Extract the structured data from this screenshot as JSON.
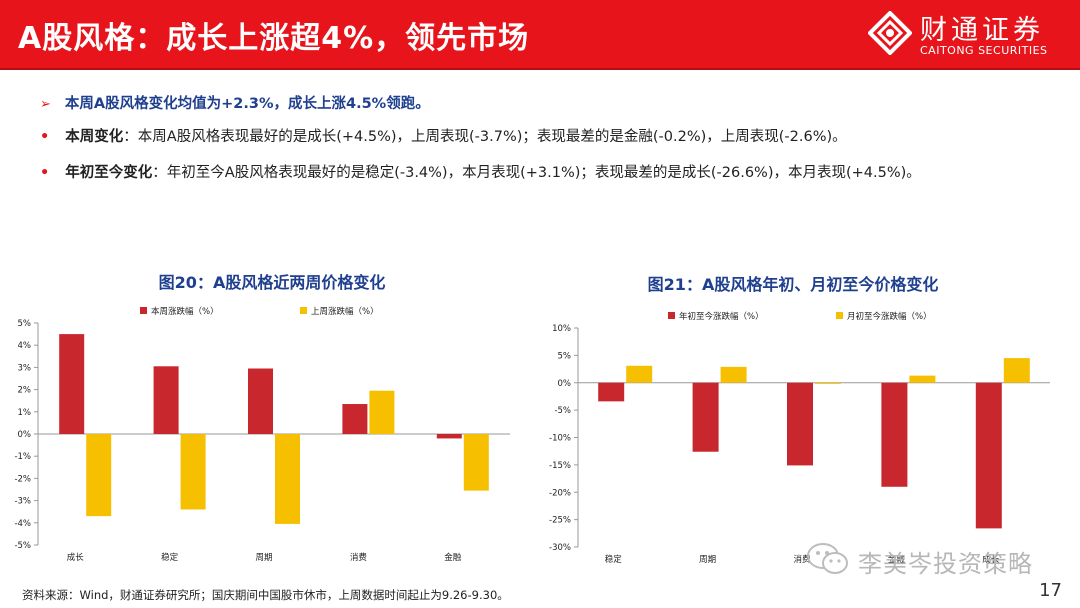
{
  "header": {
    "title": "A股风格：成长上涨超4%，领先市场",
    "logo_cn": "财通证券",
    "logo_en": "CAITONG SECURITIES",
    "brand_color": "#e8141c"
  },
  "bullets": {
    "summary": "本周A股风格变化均值为+2.3%，成长上涨4.5%领跑。",
    "week_lead": "本周变化",
    "week_text": "：本周A股风格表现最好的是成长(+4.5%)，上周表现(-3.7%)；表现最差的是金融(-0.2%)，上周表现(-2.6%)。",
    "ytd_lead": "年初至今变化",
    "ytd_text": "：年初至今A股风格表现最好的是稳定(-3.4%)，本月表现(+3.1%)；表现最差的是成长(-26.6%)，本月表现(+4.5%)。"
  },
  "chart_data": [
    {
      "type": "bar",
      "title": "图20：A股风格近两周价格变化",
      "categories": [
        "成长",
        "稳定",
        "周期",
        "消费",
        "金融"
      ],
      "series": [
        {
          "name": "本周涨跌幅（%）",
          "values": [
            4.5,
            3.05,
            2.95,
            1.35,
            -0.2
          ],
          "color": "#c8272d"
        },
        {
          "name": "上周涨跌幅（%）",
          "values": [
            -3.7,
            -3.4,
            -4.05,
            1.95,
            -2.55
          ],
          "color": "#f6c000"
        }
      ],
      "ylim": [
        -5,
        5
      ],
      "yticks": [
        "5%",
        "4%",
        "3%",
        "2%",
        "1%",
        "0%",
        "-1%",
        "-2%",
        "-3%",
        "-4%",
        "-5%"
      ],
      "legend": "top",
      "grid": false
    },
    {
      "type": "bar",
      "title": "图21：A股风格年初、月初至今价格变化",
      "categories": [
        "稳定",
        "周期",
        "消费",
        "金融",
        "成长"
      ],
      "series": [
        {
          "name": "年初至今涨跌幅（%）",
          "values": [
            -3.4,
            -12.6,
            -15.1,
            -19.0,
            -26.6
          ],
          "color": "#c8272d"
        },
        {
          "name": "月初至今涨跌幅（%）",
          "values": [
            3.1,
            2.9,
            -0.2,
            1.3,
            4.5
          ],
          "color": "#f6c000"
        }
      ],
      "ylim": [
        -30,
        10
      ],
      "yticks": [
        "10%",
        "5%",
        "0%",
        "-5%",
        "-10%",
        "-15%",
        "-20%",
        "-25%",
        "-30%"
      ],
      "legend": "top",
      "grid": false
    }
  ],
  "footer": {
    "source": "资料来源：Wind，财通证券研究所；国庆期间中国股市休市，上周数据时间起止为9.26-9.30。",
    "page": "17",
    "watermark": "李美岑投资策略"
  }
}
